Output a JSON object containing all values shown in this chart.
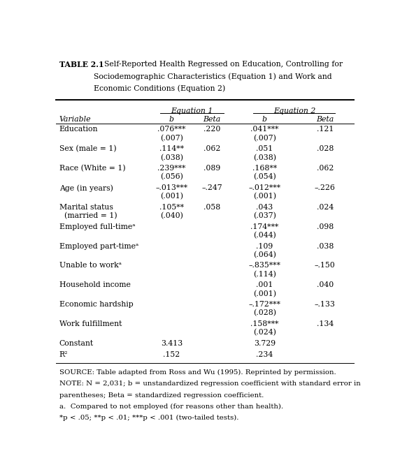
{
  "title_bold": "TABLE 2.1",
  "title_rest_lines": [
    "Self-Reported Health Regressed on Education, Controlling for",
    "Sociodemographic Characteristics (Equation 1) and Work and",
    "Economic Conditions (Equation 2)"
  ],
  "rows": [
    {
      "var": "Education",
      "eq1_b": ".076***",
      "eq1_se": "(.007)",
      "eq1_beta": ".220",
      "eq2_b": ".041***",
      "eq2_se": "(.007)",
      "eq2_beta": ".121"
    },
    {
      "var": "Sex (male = 1)",
      "eq1_b": ".114**",
      "eq1_se": "(.038)",
      "eq1_beta": ".062",
      "eq2_b": ".051",
      "eq2_se": "(.038)",
      "eq2_beta": ".028"
    },
    {
      "var": "Race (White = 1)",
      "eq1_b": ".239***",
      "eq1_se": "(.056)",
      "eq1_beta": ".089",
      "eq2_b": ".168**",
      "eq2_se": "(.054)",
      "eq2_beta": ".062"
    },
    {
      "var": "Age (in years)",
      "eq1_b": "–.013***",
      "eq1_se": "(.001)",
      "eq1_beta": "–.247",
      "eq2_b": "–.012***",
      "eq2_se": "(.001)",
      "eq2_beta": "–.226"
    },
    {
      "var": "Marital status",
      "var2": "  (married = 1)",
      "eq1_b": ".105**",
      "eq1_se": "(.040)",
      "eq1_beta": ".058",
      "eq2_b": ".043",
      "eq2_se": "(.037)",
      "eq2_beta": ".024"
    },
    {
      "var": "Employed full-timeᵃ",
      "eq1_b": "",
      "eq1_se": "",
      "eq1_beta": "",
      "eq2_b": ".174***",
      "eq2_se": "(.044)",
      "eq2_beta": ".098"
    },
    {
      "var": "Employed part-timeᵃ",
      "eq1_b": "",
      "eq1_se": "",
      "eq1_beta": "",
      "eq2_b": ".109",
      "eq2_se": "(.064)",
      "eq2_beta": ".038"
    },
    {
      "var": "Unable to workᵃ",
      "eq1_b": "",
      "eq1_se": "",
      "eq1_beta": "",
      "eq2_b": "–.835***",
      "eq2_se": "(.114)",
      "eq2_beta": "–.150"
    },
    {
      "var": "Household income",
      "eq1_b": "",
      "eq1_se": "",
      "eq1_beta": "",
      "eq2_b": ".001",
      "eq2_se": "(.001)",
      "eq2_beta": ".040"
    },
    {
      "var": "Economic hardship",
      "eq1_b": "",
      "eq1_se": "",
      "eq1_beta": "",
      "eq2_b": "–.172***",
      "eq2_se": "(.028)",
      "eq2_beta": "–.133"
    },
    {
      "var": "Work fulfillment",
      "eq1_b": "",
      "eq1_se": "",
      "eq1_beta": "",
      "eq2_b": ".158***",
      "eq2_se": "(.024)",
      "eq2_beta": ".134"
    },
    {
      "var": "Constant",
      "eq1_b": "3.413",
      "eq1_se": "",
      "eq1_beta": "",
      "eq2_b": "3.729",
      "eq2_se": "",
      "eq2_beta": ""
    },
    {
      "var": "R²",
      "eq1_b": ".152",
      "eq1_se": "",
      "eq1_beta": "",
      "eq2_b": ".234",
      "eq2_se": "",
      "eq2_beta": ""
    }
  ],
  "footnotes": [
    "SOURCE: Table adapted from Ross and Wu (1995). Reprinted by permission.",
    "NOTE: N = 2,031; b = unstandardized regression coefficient with standard error in",
    "parentheses; Beta = standardized regression coefficient.",
    "a.  Compared to not employed (for reasons other than health).",
    "*p < .05; **p < .01; ***p < .001 (two-tailed tests)."
  ],
  "col_x": {
    "var": 0.03,
    "eq1_b": 0.36,
    "eq1_beta": 0.49,
    "eq2_b": 0.66,
    "eq2_beta": 0.855
  },
  "figsize": [
    5.72,
    6.46
  ],
  "dpi": 100,
  "base_fs": 7.8,
  "fn_fs": 7.3
}
